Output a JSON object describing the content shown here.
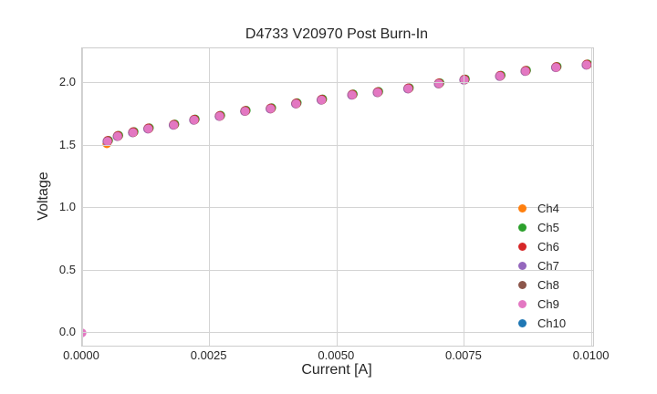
{
  "figure": {
    "background": "#ffffff",
    "text_color": "#262626",
    "grid_color": "#d4d4d4"
  },
  "chart_data": {
    "type": "scatter",
    "title": "D4733 V20970 Post Burn-In",
    "xlabel": "Current [A]",
    "ylabel": "Voltage",
    "grid": true,
    "legend_position": "lower right",
    "legend_frame": false,
    "xlim": [
      0.0,
      0.010025
    ],
    "ylim": [
      -0.102,
      2.272
    ],
    "x_ticks": {
      "values": [
        0.0,
        0.0025,
        0.005,
        0.0075,
        0.01
      ],
      "labels": [
        "0.0000",
        "0.0025",
        "0.0050",
        "0.0075",
        "0.0100"
      ]
    },
    "y_ticks": {
      "values": [
        0.0,
        0.5,
        1.0,
        1.5,
        2.0
      ],
      "labels": [
        "0.0",
        "0.5",
        "1.0",
        "1.5",
        "2.0"
      ]
    },
    "x": [
      0.0,
      0.0005,
      0.0007,
      0.001,
      0.0013,
      0.0018,
      0.0022,
      0.0027,
      0.0032,
      0.0037,
      0.0042,
      0.0047,
      0.0053,
      0.0058,
      0.0064,
      0.007,
      0.0075,
      0.0082,
      0.0087,
      0.0093,
      0.0099
    ],
    "series": [
      {
        "name": "Ch4",
        "color": "#ff7f0e",
        "values": [
          0.0,
          1.51,
          1.57,
          1.6,
          1.63,
          1.66,
          1.7,
          1.73,
          1.77,
          1.79,
          1.83,
          1.86,
          1.9,
          1.92,
          1.95,
          1.99,
          2.02,
          2.05,
          2.09,
          2.12,
          2.14
        ]
      },
      {
        "name": "Ch5",
        "color": "#2ca02c",
        "values": [
          0.0,
          1.53,
          1.57,
          1.6,
          1.63,
          1.66,
          1.7,
          1.73,
          1.77,
          1.79,
          1.83,
          1.86,
          1.9,
          1.92,
          1.95,
          1.99,
          2.02,
          2.05,
          2.09,
          2.12,
          2.14
        ]
      },
      {
        "name": "Ch6",
        "color": "#d62728",
        "values": [
          0.0,
          1.53,
          1.57,
          1.6,
          1.63,
          1.66,
          1.7,
          1.73,
          1.77,
          1.79,
          1.83,
          1.86,
          1.9,
          1.92,
          1.95,
          1.99,
          2.02,
          2.05,
          2.09,
          2.12,
          2.14
        ]
      },
      {
        "name": "Ch7",
        "color": "#9467bd",
        "values": [
          0.0,
          1.53,
          1.57,
          1.6,
          1.63,
          1.66,
          1.7,
          1.73,
          1.77,
          1.79,
          1.83,
          1.86,
          1.9,
          1.92,
          1.95,
          1.99,
          2.02,
          2.05,
          2.09,
          2.12,
          2.14
        ]
      },
      {
        "name": "Ch8",
        "color": "#8c564b",
        "values": [
          0.0,
          1.53,
          1.57,
          1.6,
          1.63,
          1.66,
          1.7,
          1.73,
          1.77,
          1.79,
          1.83,
          1.86,
          1.9,
          1.92,
          1.95,
          1.99,
          2.02,
          2.05,
          2.09,
          2.12,
          2.14
        ]
      },
      {
        "name": "Ch9",
        "color": "#e377c2",
        "values": [
          0.0,
          1.53,
          1.57,
          1.6,
          1.63,
          1.66,
          1.7,
          1.73,
          1.77,
          1.79,
          1.83,
          1.86,
          1.9,
          1.92,
          1.95,
          1.99,
          2.02,
          2.05,
          2.09,
          2.12,
          2.14
        ]
      },
      {
        "name": "Ch10",
        "color": "#1f77b4",
        "values": [
          0.0,
          1.53,
          1.57,
          1.6,
          1.63,
          1.66,
          1.7,
          1.73,
          1.77,
          1.79,
          1.83,
          1.86,
          1.9,
          1.92,
          1.95,
          1.99,
          2.02,
          2.05,
          2.09,
          2.12,
          2.14
        ]
      }
    ]
  }
}
